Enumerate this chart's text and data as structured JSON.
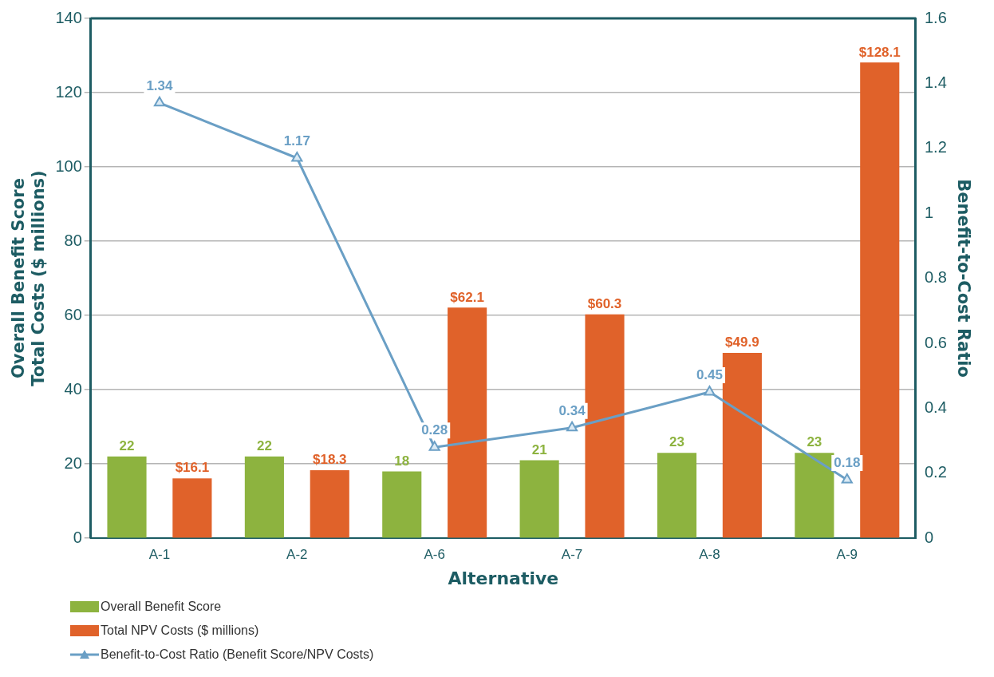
{
  "chart_data": {
    "type": "bar",
    "xlabel": "Alternative",
    "ylabel": "Overall Benefit Score\nTotal Costs ($ millions)",
    "y2label": "Benefit-to-Cost Ratio",
    "categories": [
      "A-1",
      "A-2",
      "A-6",
      "A-7",
      "A-8",
      "A-9"
    ],
    "series": [
      {
        "name": "Overall Benefit Score",
        "color": "#8db33f",
        "values": [
          22,
          22,
          18,
          21,
          23,
          23
        ],
        "value_labels": [
          "22",
          "22",
          "18",
          "21",
          "23",
          "23"
        ]
      },
      {
        "name": "Total NPV Costs ($ millions)",
        "color": "#e0622a",
        "values": [
          16.1,
          18.3,
          62.1,
          60.3,
          49.9,
          128.1
        ],
        "value_labels": [
          "$16.1",
          "$18.3",
          "$62.1",
          "$60.3",
          "$49.9",
          "$128.1"
        ]
      },
      {
        "name": "Benefit-to-Cost Ratio (Benefit Score/NPV Costs)",
        "type": "line",
        "axis": "y2",
        "color": "#6a9fc5",
        "marker": "triangle",
        "values": [
          1.34,
          1.17,
          0.28,
          0.34,
          0.45,
          0.18
        ],
        "value_labels": [
          "1.34",
          "1.17",
          "0.28",
          "0.34",
          "0.45",
          "0.18"
        ]
      }
    ],
    "ylim": [
      0,
      140
    ],
    "yticks": [
      0,
      20,
      40,
      60,
      80,
      100,
      120,
      140
    ],
    "y2lim": [
      0,
      1.6
    ],
    "y2ticks": [
      0,
      0.2,
      0.4,
      0.6,
      0.8,
      1,
      1.2,
      1.4,
      1.6
    ],
    "grid": "y",
    "legend": "bottom"
  }
}
